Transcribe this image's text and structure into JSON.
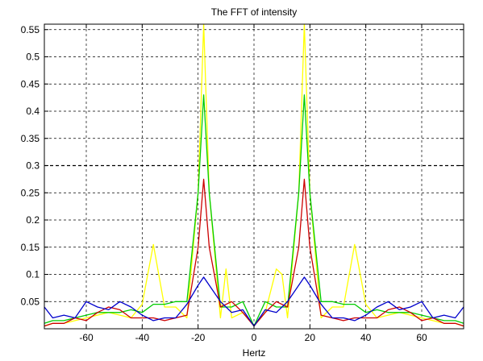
{
  "chart_data": {
    "type": "line",
    "title": "The FFT of intensity",
    "xlabel": "Hertz",
    "ylabel": "",
    "xlim": [
      -75,
      75
    ],
    "ylim": [
      0,
      0.56
    ],
    "grid": true,
    "x_ticks": [
      -60,
      -40,
      -20,
      0,
      20,
      40,
      60
    ],
    "x_tick_labels": [
      "-60",
      "-40",
      "-20",
      "0",
      "20",
      "40",
      "60"
    ],
    "y_ticks": [
      0.05,
      0.1,
      0.15,
      0.2,
      0.25,
      0.3,
      0.35,
      0.4,
      0.45,
      0.5,
      0.55
    ],
    "y_tick_labels": [
      "0.05",
      "0.1",
      "0.15",
      "0.2",
      "0.25",
      "0.3",
      "0.35",
      "0.4",
      "0.45",
      "0.5",
      "0.55"
    ],
    "reference_line": {
      "y": 0.3,
      "color": "#000000"
    },
    "series": [
      {
        "color": "#ffff00",
        "x": [
          -75,
          -72,
          -68,
          -64,
          -60,
          -56,
          -52,
          -48,
          -44,
          -40,
          -36,
          -32,
          -28,
          -24,
          -20,
          -18,
          -16,
          -12,
          -10,
          -8,
          -4,
          0,
          4,
          8,
          10,
          12,
          16,
          18,
          20,
          24,
          28,
          32,
          36,
          40,
          44,
          48,
          52,
          56,
          60,
          64,
          68,
          72,
          75
        ],
        "values": [
          0.005,
          0.01,
          0.01,
          0.015,
          0.02,
          0.025,
          0.03,
          0.025,
          0.02,
          0.045,
          0.155,
          0.04,
          0.04,
          0.02,
          0.25,
          0.56,
          0.25,
          0.02,
          0.11,
          0.02,
          0.03,
          0.005,
          0.03,
          0.11,
          0.1,
          0.02,
          0.25,
          0.56,
          0.25,
          0.02,
          0.04,
          0.04,
          0.155,
          0.045,
          0.02,
          0.025,
          0.03,
          0.025,
          0.02,
          0.015,
          0.01,
          0.01,
          0.005
        ]
      },
      {
        "color": "#00cc00",
        "x": [
          -75,
          -72,
          -68,
          -64,
          -60,
          -56,
          -52,
          -48,
          -44,
          -40,
          -36,
          -32,
          -28,
          -24,
          -20,
          -18,
          -16,
          -12,
          -8,
          -4,
          0,
          4,
          8,
          12,
          16,
          18,
          20,
          24,
          28,
          32,
          36,
          40,
          44,
          48,
          52,
          56,
          60,
          64,
          68,
          72,
          75
        ],
        "values": [
          0.01,
          0.015,
          0.015,
          0.02,
          0.025,
          0.03,
          0.03,
          0.03,
          0.035,
          0.03,
          0.045,
          0.045,
          0.05,
          0.05,
          0.25,
          0.43,
          0.25,
          0.04,
          0.04,
          0.05,
          0.005,
          0.05,
          0.04,
          0.04,
          0.25,
          0.43,
          0.25,
          0.05,
          0.05,
          0.045,
          0.045,
          0.03,
          0.035,
          0.03,
          0.03,
          0.03,
          0.025,
          0.02,
          0.015,
          0.015,
          0.01
        ]
      },
      {
        "color": "#cc0000",
        "x": [
          -75,
          -72,
          -68,
          -64,
          -60,
          -56,
          -52,
          -48,
          -44,
          -40,
          -36,
          -32,
          -28,
          -24,
          -20,
          -18,
          -16,
          -12,
          -8,
          -4,
          0,
          4,
          8,
          12,
          16,
          18,
          20,
          24,
          28,
          32,
          36,
          40,
          44,
          48,
          52,
          56,
          60,
          64,
          68,
          72,
          75
        ],
        "values": [
          0.005,
          0.01,
          0.01,
          0.02,
          0.015,
          0.03,
          0.04,
          0.035,
          0.02,
          0.02,
          0.02,
          0.015,
          0.02,
          0.025,
          0.15,
          0.275,
          0.15,
          0.04,
          0.05,
          0.03,
          0.005,
          0.03,
          0.05,
          0.04,
          0.15,
          0.275,
          0.15,
          0.025,
          0.02,
          0.015,
          0.02,
          0.02,
          0.02,
          0.035,
          0.04,
          0.03,
          0.015,
          0.02,
          0.01,
          0.01,
          0.005
        ]
      },
      {
        "color": "#0000cc",
        "x": [
          -75,
          -72,
          -68,
          -64,
          -60,
          -56,
          -52,
          -48,
          -44,
          -40,
          -36,
          -32,
          -28,
          -24,
          -20,
          -18,
          -16,
          -12,
          -8,
          -4,
          0,
          4,
          8,
          12,
          16,
          18,
          20,
          24,
          28,
          32,
          36,
          40,
          44,
          48,
          52,
          56,
          60,
          64,
          68,
          72,
          75
        ],
        "values": [
          0.04,
          0.02,
          0.025,
          0.02,
          0.05,
          0.04,
          0.035,
          0.05,
          0.04,
          0.025,
          0.015,
          0.02,
          0.02,
          0.045,
          0.08,
          0.095,
          0.08,
          0.05,
          0.03,
          0.035,
          0.005,
          0.035,
          0.03,
          0.05,
          0.08,
          0.095,
          0.08,
          0.045,
          0.02,
          0.02,
          0.015,
          0.025,
          0.04,
          0.05,
          0.035,
          0.04,
          0.05,
          0.02,
          0.025,
          0.02,
          0.04
        ]
      }
    ]
  }
}
